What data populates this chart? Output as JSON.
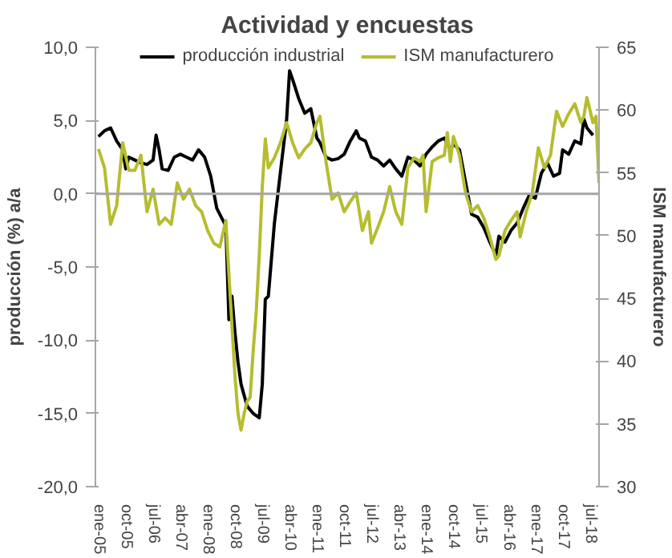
{
  "chart_data": {
    "type": "line",
    "title": "Actividad y encuestas",
    "ylabel": "producción (%) a/a",
    "y2label": "ISM manufacturero",
    "xlim": [
      "2004-12",
      "2018-10"
    ],
    "xticks": [
      {
        "value": "2005-01",
        "label": "ene-05"
      },
      {
        "value": "2005-10",
        "label": "oct-05"
      },
      {
        "value": "2006-07",
        "label": "jul-06"
      },
      {
        "value": "2007-04",
        "label": "abr-07"
      },
      {
        "value": "2008-01",
        "label": "ene-08"
      },
      {
        "value": "2008-10",
        "label": "oct-08"
      },
      {
        "value": "2009-07",
        "label": "jul-09"
      },
      {
        "value": "2010-04",
        "label": "abr-10"
      },
      {
        "value": "2011-01",
        "label": "ene-11"
      },
      {
        "value": "2011-10",
        "label": "oct-11"
      },
      {
        "value": "2012-07",
        "label": "jul-12"
      },
      {
        "value": "2013-04",
        "label": "abr-13"
      },
      {
        "value": "2014-01",
        "label": "ene-14"
      },
      {
        "value": "2014-10",
        "label": "oct-14"
      },
      {
        "value": "2015-07",
        "label": "jul-15"
      },
      {
        "value": "2016-04",
        "label": "abr-16"
      },
      {
        "value": "2017-01",
        "label": "ene-17"
      },
      {
        "value": "2017-10",
        "label": "oct-17"
      },
      {
        "value": "2018-07",
        "label": "jul-18"
      }
    ],
    "ylim": [
      -20,
      10
    ],
    "yticks": [
      {
        "value": -20,
        "label": "-20,0"
      },
      {
        "value": -15,
        "label": "-15,0"
      },
      {
        "value": -10,
        "label": "-10,0"
      },
      {
        "value": -5,
        "label": "-5,0"
      },
      {
        "value": 0,
        "label": "0,0"
      },
      {
        "value": 5,
        "label": "5,0"
      },
      {
        "value": 10,
        "label": "10,0"
      }
    ],
    "y2lim": [
      30,
      65
    ],
    "y2ticks": [
      30,
      35,
      40,
      45,
      50,
      55,
      60,
      65
    ],
    "ref_lines": [
      {
        "axis": "y",
        "value": 0,
        "color": "#a6a6a6"
      }
    ],
    "grid": false,
    "legend": "top",
    "marker": "none",
    "line_style": "solid",
    "series": [
      {
        "name": "producción industrial",
        "color": "#000000",
        "x": [
          "2005-01",
          "2005-03",
          "2005-05",
          "2005-07",
          "2005-09",
          "2005-10",
          "2005-11",
          "2006-01",
          "2006-03",
          "2006-05",
          "2006-07",
          "2006-08",
          "2006-09",
          "2006-10",
          "2006-12",
          "2007-02",
          "2007-04",
          "2007-06",
          "2007-08",
          "2007-10",
          "2007-12",
          "2008-02",
          "2008-04",
          "2008-06",
          "2008-07",
          "2008-08",
          "2008-09",
          "2008-10",
          "2008-11",
          "2008-12",
          "2009-02",
          "2009-04",
          "2009-06",
          "2009-07",
          "2009-08",
          "2009-09",
          "2009-11",
          "2010-01",
          "2010-03",
          "2010-04",
          "2010-05",
          "2010-07",
          "2010-09",
          "2010-11",
          "2011-01",
          "2011-02",
          "2011-04",
          "2011-06",
          "2011-08",
          "2011-10",
          "2011-12",
          "2012-02",
          "2012-03",
          "2012-05",
          "2012-07",
          "2012-09",
          "2012-11",
          "2013-01",
          "2013-03",
          "2013-05",
          "2013-07",
          "2013-09",
          "2013-11",
          "2014-01",
          "2014-03",
          "2014-05",
          "2014-07",
          "2014-09",
          "2014-10",
          "2014-12",
          "2015-02",
          "2015-04",
          "2015-06",
          "2015-08",
          "2015-10",
          "2015-12",
          "2016-01",
          "2016-03",
          "2016-05",
          "2016-07",
          "2016-09",
          "2016-11",
          "2017-01",
          "2017-03",
          "2017-05",
          "2017-07",
          "2017-09",
          "2017-10",
          "2017-12",
          "2018-02",
          "2018-04",
          "2018-05",
          "2018-06",
          "2018-08"
        ],
        "values": [
          3.9,
          4.3,
          4.5,
          3.6,
          3.0,
          1.7,
          2.5,
          2.3,
          2.1,
          2.0,
          2.3,
          4.0,
          3.0,
          1.7,
          1.6,
          2.5,
          2.7,
          2.5,
          2.3,
          3.0,
          2.5,
          1.2,
          -1.0,
          -1.8,
          -2.2,
          -8.6,
          -7.0,
          -9.5,
          -11.5,
          -13.0,
          -14.5,
          -15.0,
          -15.3,
          -13.0,
          -7.2,
          -7.0,
          -2.0,
          1.5,
          5.0,
          8.4,
          7.8,
          6.5,
          5.5,
          5.8,
          3.8,
          3.5,
          2.5,
          2.3,
          2.4,
          2.7,
          3.6,
          4.3,
          3.8,
          3.6,
          2.5,
          2.3,
          1.9,
          2.3,
          1.7,
          1.2,
          2.5,
          2.3,
          1.9,
          2.7,
          3.2,
          3.6,
          3.8,
          3.0,
          3.4,
          3.0,
          0.8,
          -1.4,
          -1.6,
          -2.3,
          -3.3,
          -4.2,
          -2.9,
          -3.3,
          -2.5,
          -2.0,
          -1.0,
          -0.1,
          -0.3,
          1.4,
          2.1,
          1.2,
          1.4,
          3.0,
          2.7,
          3.6,
          3.4,
          5.1,
          4.5,
          4.0
        ]
      },
      {
        "name": "ISM manufacturero",
        "color": "#b5bd30",
        "axis": "y2",
        "x": [
          "2005-01",
          "2005-03",
          "2005-05",
          "2005-07",
          "2005-09",
          "2005-11",
          "2006-01",
          "2006-03",
          "2006-05",
          "2006-07",
          "2006-09",
          "2006-11",
          "2007-01",
          "2007-03",
          "2007-05",
          "2007-07",
          "2007-09",
          "2007-11",
          "2008-01",
          "2008-03",
          "2008-05",
          "2008-07",
          "2008-08",
          "2008-10",
          "2008-11",
          "2008-12",
          "2009-01",
          "2009-02",
          "2009-03",
          "2009-04",
          "2009-05",
          "2009-06",
          "2009-07",
          "2009-08",
          "2009-09",
          "2009-11",
          "2010-01",
          "2010-03",
          "2010-05",
          "2010-07",
          "2010-09",
          "2010-11",
          "2011-01",
          "2011-02",
          "2011-04",
          "2011-06",
          "2011-08",
          "2011-10",
          "2011-12",
          "2012-02",
          "2012-04",
          "2012-06",
          "2012-07",
          "2012-09",
          "2012-11",
          "2013-01",
          "2013-03",
          "2013-05",
          "2013-07",
          "2013-09",
          "2013-11",
          "2013-12",
          "2014-01",
          "2014-03",
          "2014-05",
          "2014-07",
          "2014-08",
          "2014-09",
          "2014-10",
          "2014-12",
          "2015-02",
          "2015-04",
          "2015-06",
          "2015-08",
          "2015-10",
          "2015-12",
          "2016-01",
          "2016-03",
          "2016-05",
          "2016-07",
          "2016-08",
          "2016-10",
          "2016-12",
          "2017-02",
          "2017-04",
          "2017-06",
          "2017-08",
          "2017-10",
          "2017-12",
          "2018-02",
          "2018-04",
          "2018-05",
          "2018-06",
          "2018-08",
          "2018-09",
          "2018-10"
        ],
        "values": [
          56.9,
          55.4,
          50.9,
          52.4,
          57.4,
          55.2,
          55.2,
          56.4,
          51.9,
          53.7,
          50.9,
          51.4,
          50.9,
          54.2,
          52.9,
          53.7,
          52.4,
          51.9,
          50.4,
          49.4,
          49.1,
          51.2,
          46.9,
          38.8,
          35.8,
          34.5,
          35.8,
          36.8,
          37.1,
          40.8,
          43.9,
          48.4,
          53.9,
          57.7,
          55.4,
          56.2,
          57.4,
          59.0,
          57.4,
          56.2,
          56.9,
          57.4,
          59.0,
          59.5,
          55.9,
          52.9,
          53.4,
          51.9,
          52.7,
          53.4,
          50.4,
          51.9,
          49.4,
          50.6,
          51.9,
          53.9,
          51.9,
          50.9,
          55.4,
          56.2,
          55.9,
          56.4,
          51.9,
          55.9,
          56.2,
          56.4,
          58.2,
          55.9,
          57.9,
          56.4,
          53.4,
          51.9,
          52.4,
          51.4,
          49.9,
          48.1,
          48.4,
          50.4,
          51.2,
          51.9,
          49.9,
          51.9,
          53.4,
          57.0,
          55.4,
          56.4,
          59.9,
          58.7,
          59.7,
          60.5,
          59.0,
          59.5,
          61.0,
          59.0,
          59.5,
          54.2
        ]
      }
    ]
  }
}
